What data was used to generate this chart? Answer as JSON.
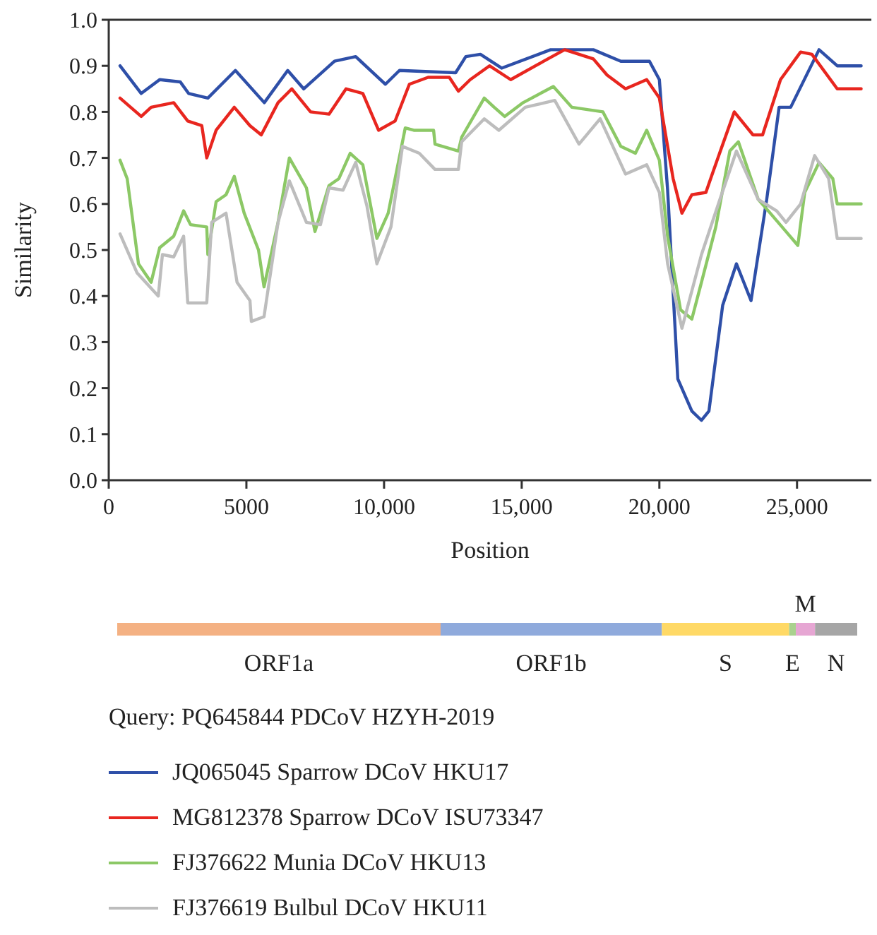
{
  "chart_data": {
    "type": "line",
    "xlabel": "Position",
    "ylabel": "Similarity",
    "xlim": [
      0,
      27700
    ],
    "ylim": [
      0,
      1
    ],
    "xticks": [
      0,
      5000,
      {
        "value": 10000,
        "label": "10,000"
      },
      {
        "value": 15000,
        "label": "15,000"
      },
      {
        "value": 20000,
        "label": "20,000"
      },
      {
        "value": 25000,
        "label": "25,000"
      }
    ],
    "yticks": [
      {
        "value": 0,
        "label": "0.0"
      },
      0.1,
      0.2,
      0.3,
      0.4,
      0.5,
      0.6,
      0.7,
      0.8,
      0.9,
      {
        "value": 1,
        "label": "1.0"
      }
    ],
    "grid": false,
    "legend": "bottom",
    "line_style": "solid",
    "annotations": [
      "ORF1a",
      "ORF1b",
      "S",
      "E",
      "M",
      "N",
      "Query: PQ645844 PDCoV HZYH-2019"
    ],
    "series": [
      {
        "name": "JQ065045 Sparrow DCoV HKU17",
        "color": "#2e4fa8",
        "x": [
          410,
          1180,
          1850,
          2600,
          2900,
          3600,
          4600,
          5650,
          6500,
          7080,
          8200,
          8970,
          10050,
          10560,
          12600,
          12970,
          13500,
          14270,
          16050,
          17600,
          18600,
          19640,
          20000,
          20300,
          20670,
          21180,
          21530,
          21800,
          22300,
          22800,
          23330,
          23900,
          24350,
          24770,
          25800,
          26460,
          27330
        ],
        "values": [
          0.9,
          0.84,
          0.87,
          0.865,
          0.84,
          0.83,
          0.89,
          0.82,
          0.89,
          0.85,
          0.91,
          0.92,
          0.86,
          0.89,
          0.885,
          0.92,
          0.925,
          0.895,
          0.935,
          0.935,
          0.91,
          0.91,
          0.87,
          0.63,
          0.22,
          0.15,
          0.13,
          0.15,
          0.38,
          0.47,
          0.39,
          0.61,
          0.81,
          0.81,
          0.935,
          0.9,
          0.9
        ]
      },
      {
        "name": "MG812378 Sparrow DCoV ISU73347",
        "color": "#e8261f",
        "x": [
          410,
          1180,
          1540,
          2360,
          2870,
          3380,
          3560,
          3900,
          4560,
          5130,
          5540,
          6150,
          6650,
          7330,
          8000,
          8620,
          9230,
          9800,
          10400,
          10920,
          11600,
          12370,
          12700,
          13130,
          13830,
          14600,
          15800,
          16560,
          17600,
          18100,
          18770,
          19540,
          20000,
          20500,
          20820,
          21180,
          21690,
          21950,
          22720,
          23400,
          23750,
          24400,
          25130,
          25540,
          26460,
          27330
        ],
        "values": [
          0.83,
          0.79,
          0.81,
          0.82,
          0.78,
          0.77,
          0.7,
          0.76,
          0.81,
          0.77,
          0.75,
          0.82,
          0.85,
          0.8,
          0.795,
          0.85,
          0.84,
          0.76,
          0.78,
          0.86,
          0.875,
          0.875,
          0.845,
          0.87,
          0.9,
          0.87,
          0.91,
          0.935,
          0.915,
          0.88,
          0.85,
          0.87,
          0.83,
          0.655,
          0.58,
          0.62,
          0.625,
          0.67,
          0.8,
          0.75,
          0.75,
          0.87,
          0.93,
          0.925,
          0.85,
          0.85
        ]
      },
      {
        "name": "FJ376622 Munia DCoV HKU13",
        "color": "#8cc866",
        "x": [
          410,
          670,
          1080,
          1540,
          1850,
          2360,
          2720,
          2970,
          3560,
          3600,
          3900,
          4260,
          4560,
          4920,
          5440,
          5640,
          6150,
          6560,
          7180,
          7490,
          8000,
          8360,
          8770,
          9230,
          9740,
          10150,
          10770,
          11080,
          11800,
          11850,
          12700,
          12820,
          13640,
          14000,
          14380,
          15050,
          16150,
          16820,
          17950,
          18600,
          19130,
          19540,
          20000,
          20300,
          20770,
          21180,
          21530,
          22050,
          22560,
          22870,
          23590,
          24100,
          24600,
          25030,
          25280,
          25800,
          26300,
          26460,
          27330
        ],
        "values": [
          0.695,
          0.655,
          0.47,
          0.43,
          0.505,
          0.53,
          0.585,
          0.555,
          0.55,
          0.49,
          0.605,
          0.62,
          0.66,
          0.58,
          0.5,
          0.42,
          0.56,
          0.7,
          0.635,
          0.54,
          0.64,
          0.655,
          0.71,
          0.685,
          0.525,
          0.58,
          0.765,
          0.76,
          0.76,
          0.73,
          0.715,
          0.745,
          0.83,
          0.81,
          0.79,
          0.82,
          0.855,
          0.81,
          0.8,
          0.725,
          0.71,
          0.76,
          0.695,
          0.53,
          0.37,
          0.35,
          0.43,
          0.55,
          0.715,
          0.735,
          0.61,
          0.575,
          0.54,
          0.51,
          0.625,
          0.69,
          0.655,
          0.6,
          0.6
        ]
      },
      {
        "name": "FJ376619 Bulbul DCoV HKU11",
        "color": "#bdbdbd",
        "x": [
          410,
          1030,
          1800,
          1950,
          2360,
          2720,
          2870,
          3560,
          3740,
          4260,
          4660,
          5130,
          5180,
          5640,
          6150,
          6560,
          7180,
          7690,
          8000,
          8510,
          8970,
          9380,
          9740,
          10250,
          10670,
          11280,
          11850,
          12700,
          12820,
          13640,
          14170,
          15130,
          16200,
          17080,
          17850,
          18770,
          19540,
          20000,
          20300,
          20820,
          21530,
          22200,
          22800,
          23590,
          24260,
          24600,
          25130,
          25640,
          26150,
          26460,
          27330
        ],
        "values": [
          0.535,
          0.45,
          0.4,
          0.49,
          0.485,
          0.53,
          0.385,
          0.385,
          0.56,
          0.58,
          0.43,
          0.39,
          0.345,
          0.355,
          0.56,
          0.65,
          0.56,
          0.555,
          0.635,
          0.63,
          0.69,
          0.595,
          0.47,
          0.55,
          0.725,
          0.71,
          0.675,
          0.675,
          0.735,
          0.785,
          0.76,
          0.81,
          0.825,
          0.73,
          0.785,
          0.665,
          0.685,
          0.625,
          0.47,
          0.33,
          0.49,
          0.61,
          0.715,
          0.61,
          0.585,
          0.56,
          0.6,
          0.705,
          0.655,
          0.525,
          0.525
        ]
      }
    ]
  }
}
